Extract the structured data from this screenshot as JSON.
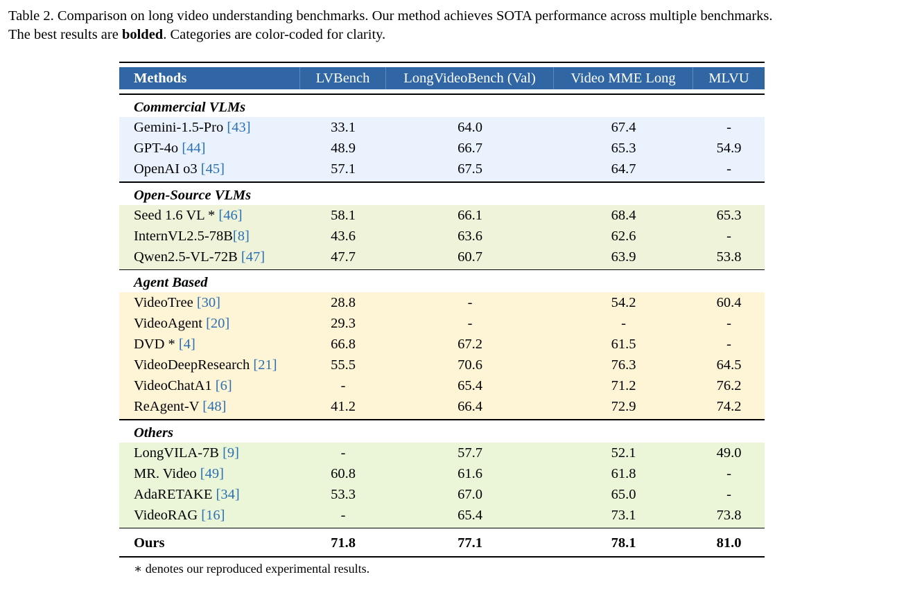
{
  "caption": {
    "part1": "Table 2.  Comparison on long video understanding benchmarks.  Our method achieves SOTA performance across multiple benchmarks.",
    "part2_pre": "The best results are ",
    "part2_bold": "bolded",
    "part2_post": ". Categories are color-coded for clarity."
  },
  "table": {
    "header": [
      "Methods",
      "LVBench",
      "LongVideoBench (Val)",
      "Video MME Long",
      "MLVU"
    ],
    "header_color": "#2f66a3",
    "categories": [
      {
        "title": "Commercial VLMs",
        "color": "#eaf3fd",
        "rows": [
          {
            "name": "Gemini-1.5-Pro ",
            "ref": "[43]",
            "lvbench": "33.1",
            "lvb_val": "64.0",
            "vmme": "67.4",
            "mlvu": "-"
          },
          {
            "name": "GPT-4o ",
            "ref": "[44]",
            "lvbench": "48.9",
            "lvb_val": "66.7",
            "vmme": "65.3",
            "mlvu": "54.9"
          },
          {
            "name": "OpenAI o3 ",
            "ref": "[45]",
            "lvbench": "57.1",
            "lvb_val": "67.5",
            "vmme": "64.7",
            "mlvu": "-"
          }
        ]
      },
      {
        "title": "Open-Source VLMs",
        "color": "#eef3d9",
        "rows": [
          {
            "name": "Seed 1.6 VL * ",
            "ref": "[46]",
            "lvbench": "58.1",
            "lvb_val": "66.1",
            "vmme": "68.4",
            "mlvu": "65.3"
          },
          {
            "name": "InternVL2.5-78B",
            "ref": "[8]",
            "lvbench": "43.6",
            "lvb_val": "63.6",
            "vmme": "62.6",
            "mlvu": "-"
          },
          {
            "name": "Qwen2.5-VL-72B ",
            "ref": "[47]",
            "lvbench": "47.7",
            "lvb_val": "60.7",
            "vmme": "63.9",
            "mlvu": "53.8"
          }
        ]
      },
      {
        "title": "Agent Based",
        "color": "#fdf5d6",
        "rows": [
          {
            "name": "VideoTree ",
            "ref": "[30]",
            "lvbench": "28.8",
            "lvb_val": "-",
            "vmme": "54.2",
            "mlvu": "60.4"
          },
          {
            "name": "VideoAgent ",
            "ref": "[20]",
            "lvbench": "29.3",
            "lvb_val": "-",
            "vmme": "-",
            "mlvu": "-"
          },
          {
            "name": "DVD * ",
            "ref": "[4]",
            "lvbench": "66.8",
            "lvb_val": "67.2",
            "vmme": "61.5",
            "mlvu": "-"
          },
          {
            "name": "VideoDeepResearch ",
            "ref": "[21]",
            "lvbench": "55.5",
            "lvb_val": "70.6",
            "vmme": "76.3",
            "mlvu": "64.5"
          },
          {
            "name": "VideoChatA1 ",
            "ref": "[6]",
            "lvbench": "-",
            "lvb_val": "65.4",
            "vmme": "71.2",
            "mlvu": "76.2"
          },
          {
            "name": "ReAgent-V ",
            "ref": "[48]",
            "lvbench": "41.2",
            "lvb_val": "66.4",
            "vmme": "72.9",
            "mlvu": "74.2"
          }
        ]
      },
      {
        "title": "Others",
        "color": "#ebf5d8",
        "rows": [
          {
            "name": "LongVILA-7B ",
            "ref": "[9]",
            "lvbench": "-",
            "lvb_val": "57.7",
            "vmme": "52.1",
            "mlvu": "49.0"
          },
          {
            "name": "MR. Video ",
            "ref": "[49]",
            "lvbench": "60.8",
            "lvb_val": "61.6",
            "vmme": "61.8",
            "mlvu": "-"
          },
          {
            "name": "AdaRETAKE ",
            "ref": "[34]",
            "lvbench": "53.3",
            "lvb_val": "67.0",
            "vmme": "65.0",
            "mlvu": "-"
          },
          {
            "name": "VideoRAG ",
            "ref": "[16]",
            "lvbench": "-",
            "lvb_val": "65.4",
            "vmme": "73.1",
            "mlvu": "73.8"
          }
        ]
      }
    ],
    "ours": {
      "name": "Ours",
      "lvbench": "71.8",
      "lvb_val": "77.1",
      "vmme": "78.1",
      "mlvu": "81.0"
    },
    "footnote": "∗ denotes our reproduced experimental results."
  }
}
